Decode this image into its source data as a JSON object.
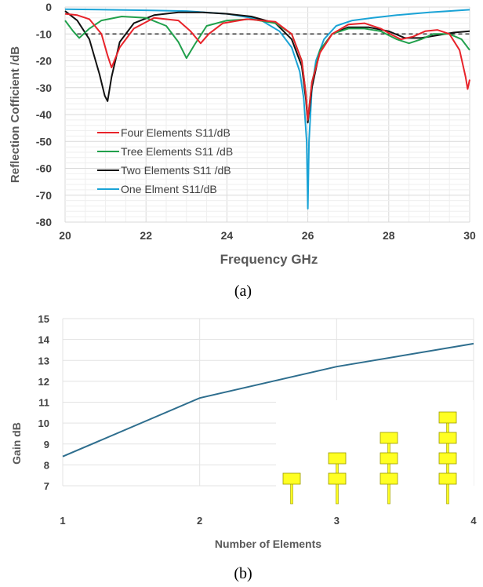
{
  "chart_data": [
    {
      "type": "line",
      "xlabel": "Frequency GHz",
      "ylabel": "Reflection Cofficient /dB",
      "xlim": [
        20,
        30
      ],
      "ylim": [
        -80,
        0
      ],
      "xticks": [
        "20",
        "22",
        "24",
        "26",
        "28",
        "30"
      ],
      "yticks": [
        "0",
        "-10",
        "-20",
        "-30",
        "-40",
        "-50",
        "-60",
        "-70",
        "-80"
      ],
      "grid": true,
      "legend_position": "lower-left",
      "reference_line": {
        "y": -10,
        "style": "dashed",
        "color": "#333333"
      },
      "caption": "(a)",
      "series": [
        {
          "name": "Four Elements S11/dB",
          "color": "#e8232a",
          "x": [
            20,
            20.3,
            20.6,
            20.9,
            21.05,
            21.15,
            21.35,
            21.7,
            22.2,
            22.8,
            23.1,
            23.35,
            23.55,
            23.9,
            24.5,
            25.2,
            25.6,
            25.85,
            25.95,
            26.0,
            26.1,
            26.3,
            26.6,
            27.0,
            27.4,
            27.8,
            28.1,
            28.3,
            28.6,
            28.9,
            29.2,
            29.5,
            29.75,
            29.9,
            29.95,
            30
          ],
          "y": [
            -2.5,
            -3,
            -4.5,
            -10,
            -18,
            -22.5,
            -15,
            -8,
            -4,
            -5,
            -9,
            -13.5,
            -10,
            -6,
            -4.5,
            -5.5,
            -10,
            -20,
            -32,
            -42,
            -28,
            -17,
            -10,
            -6.5,
            -6,
            -8,
            -10.5,
            -12,
            -11,
            -9,
            -8.5,
            -10,
            -16,
            -26,
            -30.5,
            -27
          ]
        },
        {
          "name": "Tree Elements S11 /dB",
          "color": "#21a04c",
          "x": [
            20,
            20.2,
            20.35,
            20.6,
            20.9,
            21.4,
            22.0,
            22.5,
            22.8,
            23.0,
            23.2,
            23.5,
            24.0,
            24.6,
            25.2,
            25.6,
            25.85,
            25.95,
            26.0,
            26.1,
            26.3,
            26.6,
            27.0,
            27.4,
            27.8,
            28.2,
            28.5,
            28.8,
            29.1,
            29.5,
            29.8,
            30
          ],
          "y": [
            -5,
            -9,
            -11.5,
            -8,
            -5,
            -3.5,
            -4,
            -7,
            -13,
            -19,
            -14,
            -7,
            -5,
            -4.5,
            -6,
            -10,
            -20,
            -32,
            -42,
            -28,
            -16,
            -10,
            -8,
            -8,
            -9,
            -12,
            -13.5,
            -12,
            -10,
            -10,
            -12,
            -16
          ]
        },
        {
          "name": "Two Elements S11 /dB",
          "color": "#111111",
          "x": [
            20,
            20.3,
            20.6,
            20.85,
            20.98,
            21.05,
            21.15,
            21.35,
            21.7,
            22.2,
            22.8,
            23.4,
            24.0,
            24.6,
            25.2,
            25.6,
            25.85,
            25.95,
            26.0,
            26.1,
            26.3,
            26.6,
            27.0,
            27.5,
            28.0,
            28.4,
            28.8,
            29.2,
            29.6,
            30
          ],
          "y": [
            -1.5,
            -5,
            -12,
            -25,
            -33,
            -35,
            -26,
            -13,
            -6,
            -3,
            -2,
            -2,
            -2.5,
            -3.5,
            -6,
            -12,
            -22,
            -34,
            -43,
            -30,
            -16,
            -10,
            -7.5,
            -7.5,
            -9,
            -11.5,
            -11.5,
            -10.5,
            -9.5,
            -9
          ]
        },
        {
          "name": "One Elment S11/dB",
          "color": "#1aa3d6",
          "x": [
            20,
            21,
            22,
            23,
            24,
            24.8,
            25.3,
            25.6,
            25.8,
            25.9,
            25.97,
            26.0,
            26.03,
            26.1,
            26.2,
            26.4,
            26.7,
            27.1,
            27.6,
            28.2,
            29,
            30
          ],
          "y": [
            -0.8,
            -1,
            -1.2,
            -1.5,
            -2.5,
            -4.5,
            -9,
            -15,
            -24,
            -34,
            -50,
            -75,
            -50,
            -30,
            -20,
            -12,
            -7,
            -5,
            -4,
            -3,
            -2,
            -1
          ]
        }
      ]
    },
    {
      "type": "line",
      "xlabel": "Number of Elements",
      "ylabel": "Gain dB",
      "xlim": [
        1,
        4
      ],
      "ylim": [
        7,
        15
      ],
      "xticks": [
        "1",
        "2",
        "3",
        "4"
      ],
      "yticks": [
        "7",
        "8",
        "9",
        "10",
        "11",
        "12",
        "13",
        "14",
        "15"
      ],
      "grid": true,
      "caption": "(b)",
      "series": [
        {
          "color": "#2e6e8e",
          "x": [
            1,
            2,
            3,
            4
          ],
          "y": [
            8.4,
            11.2,
            12.7,
            13.8
          ]
        }
      ],
      "inset": {
        "description_hidden": true,
        "patch_color": "#ffff22",
        "patch_edge": "#999900",
        "element_counts": [
          1,
          2,
          3,
          4
        ]
      }
    }
  ]
}
